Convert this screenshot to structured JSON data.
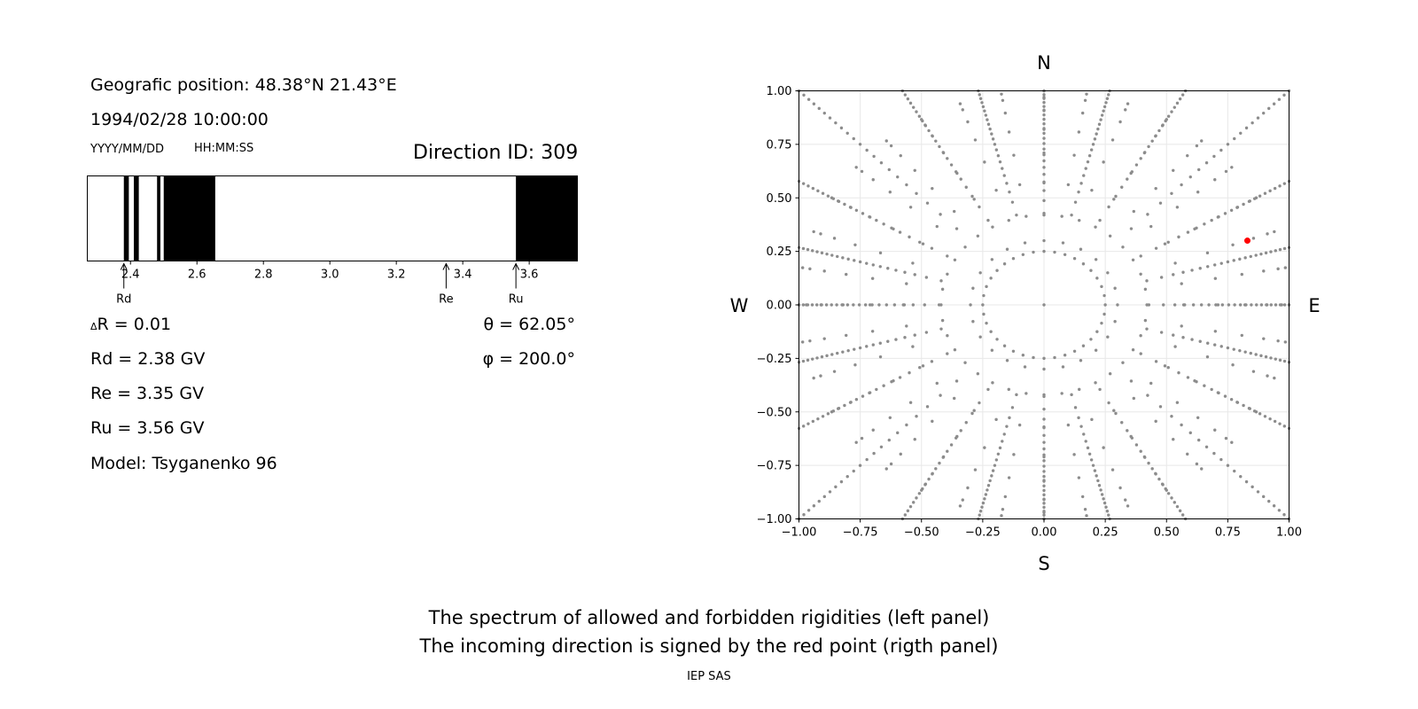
{
  "header": {
    "position": "Geografic position: 48.38°N 21.43°E",
    "datetime": "1994/02/28 10:00:00",
    "date_hint": "YYYY/MM/DD",
    "time_hint": "HH:MM:SS",
    "direction": "Direction ID: 309"
  },
  "values": {
    "dR": "R = 0.01",
    "dR_symbol": "Δ",
    "rd": "Rd = 2.38 GV",
    "re": "Re = 3.35 GV",
    "ru": "Ru = 3.56 GV",
    "model": "Model: Tsyganenko 96",
    "theta": "θ = 62.05°",
    "phi": "φ = 200.0°"
  },
  "footer": {
    "line1": "The spectrum of allowed and forbidden rigidities (left panel)",
    "line2": "The incoming direction is signed by the red point (rigth panel)",
    "credit": "IEP SAS"
  },
  "chart_data": [
    {
      "type": "bar",
      "description_role": "rigidity spectrum",
      "xlim": [
        2.27,
        3.745
      ],
      "x_ticks": [
        "2.4",
        "2.6",
        "2.8",
        "3.0",
        "3.2",
        "3.4",
        "3.6"
      ],
      "forbidden_bands": [
        [
          2.38,
          2.395
        ],
        [
          2.41,
          2.425
        ],
        [
          2.48,
          2.49
        ],
        [
          2.5,
          2.655
        ],
        [
          3.56,
          3.745
        ]
      ],
      "markers": [
        {
          "label": "Rd",
          "x": 2.38
        },
        {
          "label": "Re",
          "x": 3.35
        },
        {
          "label": "Ru",
          "x": 3.56
        }
      ],
      "colors": {
        "forbidden": "#000000",
        "allowed": "#ffffff"
      }
    },
    {
      "type": "scatter",
      "xlim": [
        -1.0,
        1.0
      ],
      "ylim": [
        -1.0,
        1.0
      ],
      "x_ticks": [
        "−1.00",
        "−0.75",
        "−0.50",
        "−0.25",
        "0.00",
        "0.25",
        "0.50",
        "0.75",
        "1.00"
      ],
      "y_ticks": [
        "1.00",
        "0.75",
        "0.50",
        "0.25",
        "0.00",
        "−0.25",
        "−0.50",
        "−0.75",
        "−1.00"
      ],
      "compass": {
        "north": "N",
        "south": "S",
        "west": "W",
        "east": "E"
      },
      "grid": true,
      "grid_pattern": {
        "rings": [
          0.25,
          0.42,
          0.57,
          0.71,
          0.82,
          0.91,
          0.97,
          1.0
        ],
        "spokes_every_deg": 15,
        "spoke_points": [
          0.3,
          0.5,
          0.64,
          0.76,
          0.86,
          0.93,
          0.97,
          0.99,
          1.0,
          1.0
        ]
      },
      "highlight": {
        "x": 0.83,
        "y": 0.3,
        "color": "#ff0000"
      },
      "point_color": "#8c8c8c"
    }
  ]
}
